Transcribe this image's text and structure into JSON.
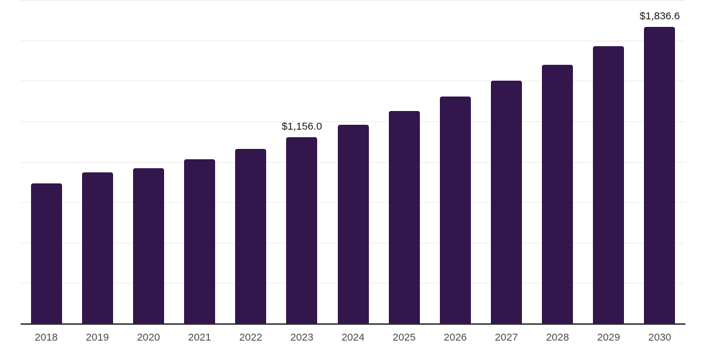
{
  "chart_data": {
    "type": "bar",
    "categories": [
      "2018",
      "2019",
      "2020",
      "2021",
      "2022",
      "2023",
      "2024",
      "2025",
      "2026",
      "2027",
      "2028",
      "2029",
      "2030"
    ],
    "values": [
      870,
      940,
      963,
      1020,
      1085,
      1156.0,
      1233,
      1318,
      1408,
      1505,
      1603,
      1717,
      1836.6
    ],
    "bar_labels": [
      "",
      "",
      "",
      "",
      "",
      "$1,156.0",
      "",
      "",
      "",
      "",
      "",
      "",
      "$1,836.6"
    ],
    "title": "",
    "xlabel": "",
    "ylabel": "",
    "ylim": [
      0,
      2000
    ],
    "gridline_step": 250,
    "grid": "horizontal-only, no y tick labels",
    "legend": "none",
    "value_prefix": "$"
  },
  "colors": {
    "bar": "#33174c",
    "value_label": "#141414",
    "axis_line": "#2b2b2b",
    "gridline": "#ececec",
    "tick_label": "#494949",
    "background": "#ffffff"
  }
}
